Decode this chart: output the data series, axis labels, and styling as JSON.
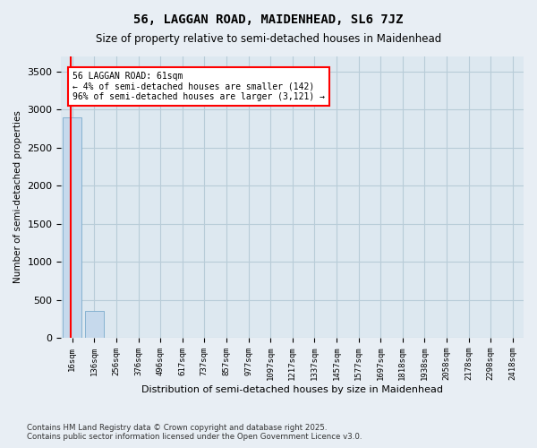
{
  "title": "56, LAGGAN ROAD, MAIDENHEAD, SL6 7JZ",
  "subtitle": "Size of property relative to semi-detached houses in Maidenhead",
  "xlabel": "Distribution of semi-detached houses by size in Maidenhead",
  "ylabel": "Number of semi-detached properties",
  "categories": [
    "16sqm",
    "136sqm",
    "256sqm",
    "376sqm",
    "496sqm",
    "617sqm",
    "737sqm",
    "857sqm",
    "977sqm",
    "1097sqm",
    "1217sqm",
    "1337sqm",
    "1457sqm",
    "1577sqm",
    "1697sqm",
    "1818sqm",
    "1938sqm",
    "2058sqm",
    "2178sqm",
    "2298sqm",
    "2418sqm"
  ],
  "values": [
    2900,
    350,
    0,
    0,
    0,
    0,
    0,
    0,
    0,
    0,
    0,
    0,
    0,
    0,
    0,
    0,
    0,
    0,
    0,
    0,
    0
  ],
  "bar_color": "#c6d9ec",
  "bar_edge_color": "#7aabcc",
  "red_line_x": -0.07,
  "ylim": [
    0,
    3700
  ],
  "yticks": [
    0,
    500,
    1000,
    1500,
    2000,
    2500,
    3000,
    3500
  ],
  "annotation_title": "56 LAGGAN ROAD: 61sqm",
  "annotation_line1": "← 4% of semi-detached houses are smaller (142)",
  "annotation_line2": "96% of semi-detached houses are larger (3,121) →",
  "footer_line1": "Contains HM Land Registry data © Crown copyright and database right 2025.",
  "footer_line2": "Contains public sector information licensed under the Open Government Licence v3.0.",
  "bg_color": "#e8eef4",
  "plot_bg_color": "#dde8f0",
  "grid_color": "#b8ccd8"
}
